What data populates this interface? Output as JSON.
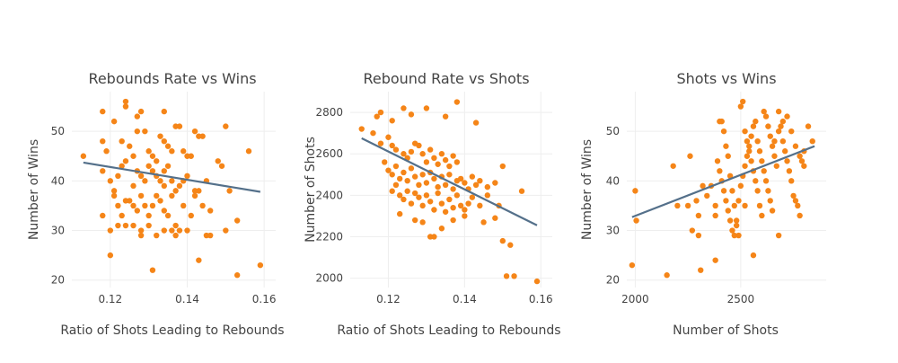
{
  "colors": {
    "points": "#f58518",
    "fit": "#54708a",
    "grid": "#eeeeee",
    "text": "#444444"
  },
  "chart_data": [
    {
      "type": "scatter",
      "title": "Rebounds Rate vs Wins",
      "xlabel": "Ratio of Shots Leading to Rebounds",
      "ylabel": "Number of Wins",
      "xlim": [
        0.11,
        0.163
      ],
      "ylim": [
        18.5,
        58
      ],
      "xticks": [
        0.12,
        0.14,
        0.16
      ],
      "xtick_labels": [
        "0.12",
        "0.14",
        "0.16"
      ],
      "yticks": [
        20,
        30,
        40,
        50
      ],
      "ytick_labels": [
        "20",
        "30",
        "40",
        "50"
      ],
      "grid": true,
      "trendline": {
        "x": [
          0.113,
          0.159
        ],
        "y": [
          43.7,
          37.8
        ]
      },
      "points": [
        [
          0.124,
          56
        ],
        [
          0.124,
          55
        ],
        [
          0.128,
          54
        ],
        [
          0.118,
          54
        ],
        [
          0.127,
          53
        ],
        [
          0.134,
          54
        ],
        [
          0.121,
          52
        ],
        [
          0.142,
          50
        ],
        [
          0.15,
          51
        ],
        [
          0.113,
          45
        ],
        [
          0.118,
          48
        ],
        [
          0.119,
          46
        ],
        [
          0.123,
          48
        ],
        [
          0.125,
          47
        ],
        [
          0.127,
          50
        ],
        [
          0.129,
          50
        ],
        [
          0.13,
          46
        ],
        [
          0.131,
          45
        ],
        [
          0.132,
          44
        ],
        [
          0.133,
          49
        ],
        [
          0.134,
          48
        ],
        [
          0.135,
          47
        ],
        [
          0.136,
          46
        ],
        [
          0.137,
          51
        ],
        [
          0.138,
          51
        ],
        [
          0.139,
          46
        ],
        [
          0.14,
          45
        ],
        [
          0.141,
          45
        ],
        [
          0.143,
          49
        ],
        [
          0.144,
          49
        ],
        [
          0.118,
          42
        ],
        [
          0.12,
          40
        ],
        [
          0.121,
          38
        ],
        [
          0.122,
          41
        ],
        [
          0.123,
          43
        ],
        [
          0.124,
          44
        ],
        [
          0.126,
          45
        ],
        [
          0.127,
          42
        ],
        [
          0.128,
          41
        ],
        [
          0.129,
          40
        ],
        [
          0.13,
          43
        ],
        [
          0.131,
          42
        ],
        [
          0.132,
          41
        ],
        [
          0.133,
          40
        ],
        [
          0.134,
          39
        ],
        [
          0.135,
          43
        ],
        [
          0.136,
          40
        ],
        [
          0.137,
          38
        ],
        [
          0.138,
          39
        ],
        [
          0.139,
          40
        ],
        [
          0.14,
          41
        ],
        [
          0.142,
          38
        ],
        [
          0.143,
          38
        ],
        [
          0.145,
          40
        ],
        [
          0.148,
          44
        ],
        [
          0.149,
          43
        ],
        [
          0.156,
          46
        ],
        [
          0.121,
          37
        ],
        [
          0.122,
          35
        ],
        [
          0.123,
          33
        ],
        [
          0.124,
          36
        ],
        [
          0.125,
          36
        ],
        [
          0.126,
          35
        ],
        [
          0.127,
          34
        ],
        [
          0.128,
          37
        ],
        [
          0.129,
          35
        ],
        [
          0.13,
          33
        ],
        [
          0.131,
          35
        ],
        [
          0.132,
          37
        ],
        [
          0.133,
          36
        ],
        [
          0.134,
          34
        ],
        [
          0.135,
          33
        ],
        [
          0.136,
          37
        ],
        [
          0.137,
          31
        ],
        [
          0.138,
          30
        ],
        [
          0.139,
          35
        ],
        [
          0.141,
          33
        ],
        [
          0.142,
          37
        ],
        [
          0.144,
          35
        ],
        [
          0.146,
          34
        ],
        [
          0.118,
          33
        ],
        [
          0.12,
          30
        ],
        [
          0.122,
          31
        ],
        [
          0.124,
          31
        ],
        [
          0.126,
          31
        ],
        [
          0.128,
          30
        ],
        [
          0.128,
          29
        ],
        [
          0.13,
          31
        ],
        [
          0.132,
          29
        ],
        [
          0.134,
          30
        ],
        [
          0.136,
          30
        ],
        [
          0.137,
          29
        ],
        [
          0.14,
          30
        ],
        [
          0.145,
          29
        ],
        [
          0.15,
          30
        ],
        [
          0.153,
          32
        ],
        [
          0.12,
          25
        ],
        [
          0.131,
          22
        ],
        [
          0.143,
          24
        ],
        [
          0.153,
          21
        ],
        [
          0.159,
          23
        ],
        [
          0.146,
          29
        ],
        [
          0.151,
          38
        ],
        [
          0.134,
          42
        ],
        [
          0.126,
          39
        ]
      ]
    },
    {
      "type": "scatter",
      "title": "Rebound Rate vs Shots",
      "xlabel": "Ratio of Shots Leading to Rebounds",
      "ylabel": "Number of Shots",
      "xlim": [
        0.11,
        0.163
      ],
      "ylim": [
        1955,
        2900
      ],
      "xticks": [
        0.12,
        0.14,
        0.16
      ],
      "xtick_labels": [
        "0.12",
        "0.14",
        "0.16"
      ],
      "yticks": [
        2000,
        2200,
        2400,
        2600,
        2800
      ],
      "ytick_labels": [
        "2000",
        "2200",
        "2400",
        "2600",
        "2800"
      ],
      "grid": true,
      "trendline": {
        "x": [
          0.113,
          0.159
        ],
        "y": [
          2675,
          2255
        ]
      },
      "points": [
        [
          0.113,
          2720
        ],
        [
          0.117,
          2780
        ],
        [
          0.118,
          2800
        ],
        [
          0.121,
          2760
        ],
        [
          0.124,
          2820
        ],
        [
          0.126,
          2790
        ],
        [
          0.13,
          2820
        ],
        [
          0.135,
          2780
        ],
        [
          0.138,
          2850
        ],
        [
          0.143,
          2750
        ],
        [
          0.116,
          2700
        ],
        [
          0.118,
          2650
        ],
        [
          0.12,
          2680
        ],
        [
          0.121,
          2640
        ],
        [
          0.122,
          2620
        ],
        [
          0.124,
          2600
        ],
        [
          0.125,
          2580
        ],
        [
          0.126,
          2610
        ],
        [
          0.127,
          2650
        ],
        [
          0.128,
          2640
        ],
        [
          0.129,
          2600
        ],
        [
          0.13,
          2560
        ],
        [
          0.131,
          2620
        ],
        [
          0.132,
          2580
        ],
        [
          0.133,
          2550
        ],
        [
          0.134,
          2600
        ],
        [
          0.135,
          2570
        ],
        [
          0.136,
          2540
        ],
        [
          0.137,
          2590
        ],
        [
          0.138,
          2560
        ],
        [
          0.119,
          2560
        ],
        [
          0.12,
          2520
        ],
        [
          0.121,
          2500
        ],
        [
          0.122,
          2540
        ],
        [
          0.123,
          2480
        ],
        [
          0.124,
          2510
        ],
        [
          0.125,
          2470
        ],
        [
          0.126,
          2530
        ],
        [
          0.127,
          2490
        ],
        [
          0.128,
          2450
        ],
        [
          0.129,
          2500
        ],
        [
          0.13,
          2460
        ],
        [
          0.131,
          2510
        ],
        [
          0.132,
          2480
        ],
        [
          0.133,
          2440
        ],
        [
          0.134,
          2490
        ],
        [
          0.135,
          2450
        ],
        [
          0.136,
          2500
        ],
        [
          0.137,
          2430
        ],
        [
          0.138,
          2470
        ],
        [
          0.139,
          2480
        ],
        [
          0.14,
          2460
        ],
        [
          0.141,
          2430
        ],
        [
          0.142,
          2490
        ],
        [
          0.143,
          2450
        ],
        [
          0.144,
          2470
        ],
        [
          0.146,
          2440
        ],
        [
          0.148,
          2460
        ],
        [
          0.15,
          2540
        ],
        [
          0.155,
          2420
        ],
        [
          0.121,
          2420
        ],
        [
          0.122,
          2450
        ],
        [
          0.123,
          2400
        ],
        [
          0.124,
          2380
        ],
        [
          0.125,
          2420
        ],
        [
          0.126,
          2360
        ],
        [
          0.127,
          2410
        ],
        [
          0.128,
          2390
        ],
        [
          0.129,
          2350
        ],
        [
          0.13,
          2400
        ],
        [
          0.131,
          2370
        ],
        [
          0.132,
          2330
        ],
        [
          0.133,
          2410
        ],
        [
          0.134,
          2360
        ],
        [
          0.135,
          2320
        ],
        [
          0.136,
          2380
        ],
        [
          0.137,
          2340
        ],
        [
          0.138,
          2400
        ],
        [
          0.139,
          2350
        ],
        [
          0.14,
          2330
        ],
        [
          0.141,
          2360
        ],
        [
          0.142,
          2390
        ],
        [
          0.144,
          2350
        ],
        [
          0.146,
          2400
        ],
        [
          0.149,
          2350
        ],
        [
          0.123,
          2310
        ],
        [
          0.127,
          2280
        ],
        [
          0.129,
          2270
        ],
        [
          0.131,
          2200
        ],
        [
          0.132,
          2200
        ],
        [
          0.134,
          2240
        ],
        [
          0.137,
          2280
        ],
        [
          0.14,
          2300
        ],
        [
          0.145,
          2270
        ],
        [
          0.15,
          2180
        ],
        [
          0.152,
          2160
        ],
        [
          0.151,
          2010
        ],
        [
          0.153,
          2010
        ],
        [
          0.159,
          1985
        ],
        [
          0.148,
          2290
        ]
      ]
    },
    {
      "type": "scatter",
      "title": "Shots vs Wins",
      "xlabel": "Number of Shots",
      "ylabel": "Number of Wins",
      "xlim": [
        1960,
        2905
      ],
      "ylim": [
        18.5,
        58
      ],
      "xticks": [
        2000,
        2500
      ],
      "xtick_labels": [
        "2000",
        "2500"
      ],
      "yticks": [
        20,
        30,
        40,
        50
      ],
      "ytick_labels": [
        "20",
        "30",
        "40",
        "50"
      ],
      "grid": true,
      "trendline": {
        "x": [
          1985,
          2850
        ],
        "y": [
          32.7,
          47.0
        ]
      },
      "points": [
        [
          1985,
          23
        ],
        [
          2000,
          38
        ],
        [
          2005,
          32
        ],
        [
          2150,
          21
        ],
        [
          2310,
          22
        ],
        [
          2380,
          24
        ],
        [
          2560,
          25
        ],
        [
          2680,
          29
        ],
        [
          2270,
          30
        ],
        [
          2300,
          29
        ],
        [
          2180,
          43
        ],
        [
          2260,
          45
        ],
        [
          2200,
          35
        ],
        [
          2250,
          35
        ],
        [
          2290,
          36
        ],
        [
          2320,
          39
        ],
        [
          2340,
          37
        ],
        [
          2360,
          39
        ],
        [
          2380,
          35
        ],
        [
          2400,
          52
        ],
        [
          2410,
          52
        ],
        [
          2420,
          50
        ],
        [
          2430,
          47
        ],
        [
          2440,
          45
        ],
        [
          2450,
          41
        ],
        [
          2460,
          38
        ],
        [
          2470,
          35
        ],
        [
          2480,
          32
        ],
        [
          2490,
          29
        ],
        [
          2500,
          55
        ],
        [
          2510,
          56
        ],
        [
          2520,
          50
        ],
        [
          2530,
          48
        ],
        [
          2540,
          46
        ],
        [
          2550,
          44
        ],
        [
          2560,
          42
        ],
        [
          2570,
          40
        ],
        [
          2580,
          38
        ],
        [
          2590,
          35
        ],
        [
          2600,
          33
        ],
        [
          2610,
          54
        ],
        [
          2620,
          53
        ],
        [
          2630,
          51
        ],
        [
          2640,
          49
        ],
        [
          2650,
          47
        ],
        [
          2660,
          45
        ],
        [
          2670,
          43
        ],
        [
          2680,
          54
        ],
        [
          2690,
          51
        ],
        [
          2700,
          48
        ],
        [
          2710,
          46
        ],
        [
          2720,
          44
        ],
        [
          2730,
          42
        ],
        [
          2740,
          40
        ],
        [
          2750,
          37
        ],
        [
          2760,
          36
        ],
        [
          2770,
          35
        ],
        [
          2780,
          33
        ],
        [
          2790,
          44
        ],
        [
          2800,
          46
        ],
        [
          2820,
          51
        ],
        [
          2380,
          33
        ],
        [
          2390,
          44
        ],
        [
          2400,
          42
        ],
        [
          2410,
          40
        ],
        [
          2420,
          38
        ],
        [
          2430,
          36
        ],
        [
          2440,
          34
        ],
        [
          2450,
          32
        ],
        [
          2460,
          30
        ],
        [
          2470,
          29
        ],
        [
          2480,
          31
        ],
        [
          2490,
          36
        ],
        [
          2500,
          39
        ],
        [
          2510,
          41
        ],
        [
          2520,
          43
        ],
        [
          2530,
          45
        ],
        [
          2540,
          47
        ],
        [
          2550,
          49
        ],
        [
          2560,
          51
        ],
        [
          2570,
          52
        ],
        [
          2580,
          48
        ],
        [
          2590,
          46
        ],
        [
          2600,
          44
        ],
        [
          2610,
          42
        ],
        [
          2620,
          40
        ],
        [
          2630,
          38
        ],
        [
          2640,
          36
        ],
        [
          2650,
          34
        ],
        [
          2660,
          48
        ],
        [
          2680,
          50
        ],
        [
          2700,
          52
        ],
        [
          2720,
          53
        ],
        [
          2740,
          50
        ],
        [
          2760,
          47
        ],
        [
          2780,
          45
        ],
        [
          2800,
          43
        ],
        [
          2840,
          48
        ],
        [
          2300,
          33
        ],
        [
          2520,
          35
        ]
      ]
    }
  ]
}
